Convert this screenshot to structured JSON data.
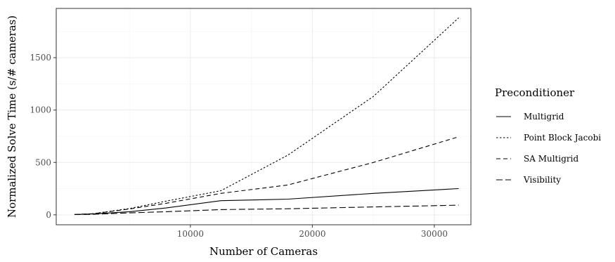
{
  "chart_data": {
    "type": "line",
    "title": "",
    "xlabel": "Number of Cameras",
    "ylabel": "Normalized Solve Time (s/# cameras)",
    "xlim": [
      -1000,
      33000
    ],
    "ylim": [
      -95,
      1970
    ],
    "xticks": [
      10000,
      20000,
      30000
    ],
    "xtick_labels": [
      "10000",
      "20000",
      "30000"
    ],
    "yticks": [
      0,
      500,
      1000,
      1500
    ],
    "ytick_labels": [
      "0",
      "500",
      "1000",
      "1500"
    ],
    "grid": true,
    "legend": {
      "title": "Preconditioner",
      "position": "right"
    },
    "series": [
      {
        "name": "Multigrid",
        "dash": "solid",
        "x": [
          500,
          2000,
          5000,
          8000,
          12500,
          18000,
          25000,
          32000
        ],
        "y": [
          3,
          8,
          30,
          65,
          135,
          150,
          205,
          250
        ]
      },
      {
        "name": "Point Block Jacobi",
        "dash": "dotted",
        "x": [
          500,
          2000,
          5000,
          8000,
          12500,
          18000,
          25000,
          32000
        ],
        "y": [
          3,
          10,
          60,
          130,
          230,
          570,
          1130,
          1880
        ]
      },
      {
        "name": "SA Multigrid",
        "dash": "dashed",
        "x": [
          500,
          2000,
          5000,
          8000,
          12500,
          18000,
          25000,
          32000
        ],
        "y": [
          3,
          10,
          55,
          110,
          205,
          285,
          500,
          745
        ]
      },
      {
        "name": "Visibility",
        "dash": "longdash",
        "x": [
          500,
          2000,
          5000,
          8000,
          12500,
          18000,
          25000,
          32000
        ],
        "y": [
          2,
          5,
          18,
          30,
          50,
          58,
          75,
          92
        ]
      }
    ]
  }
}
